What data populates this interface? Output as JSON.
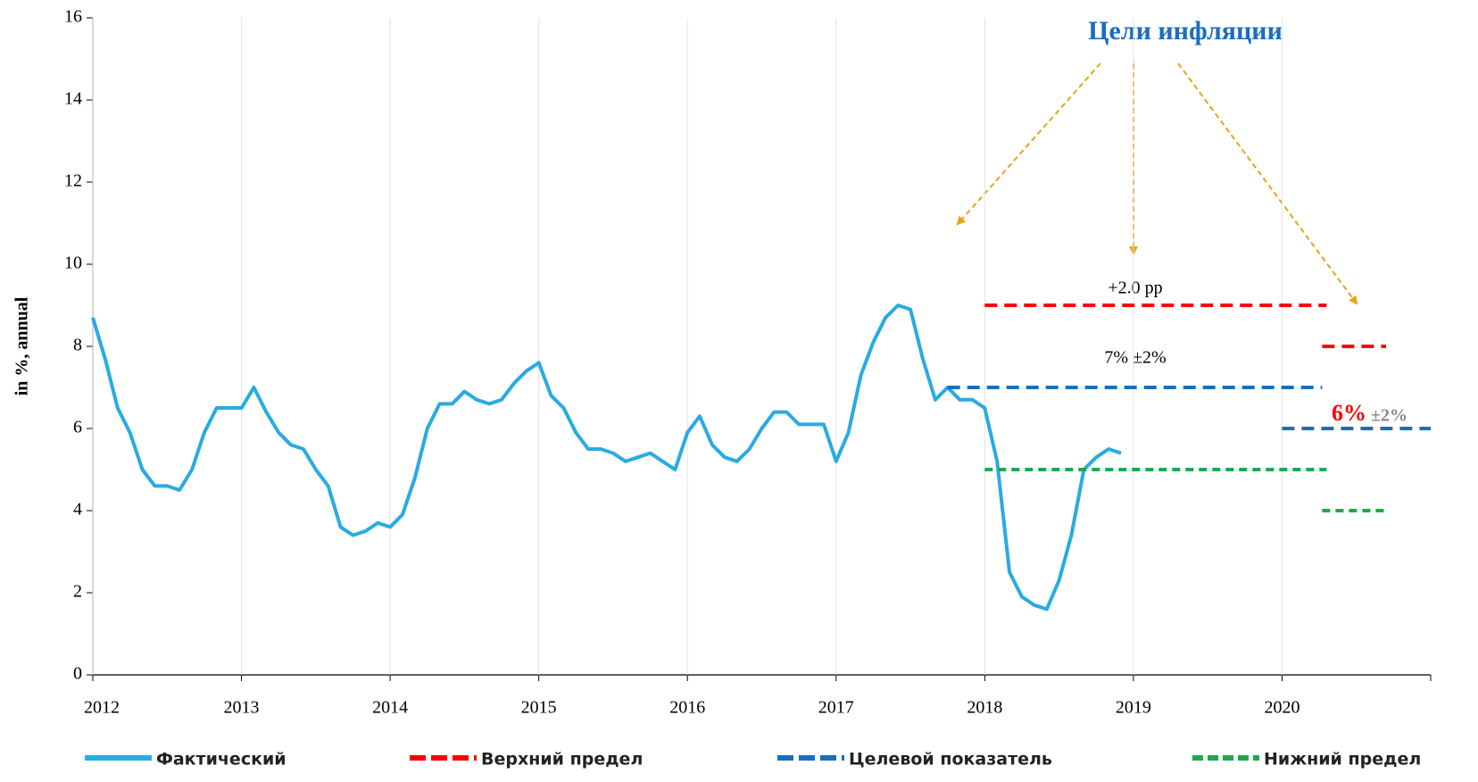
{
  "chart_data": {
    "type": "line",
    "title": "Цели инфляции",
    "ylabel": "in %, annual",
    "annotations": [
      "+2.0 pp",
      "7% ±2%",
      "6%",
      "±2%"
    ],
    "xlim": [
      2012,
      2021
    ],
    "xticks": [
      2012,
      2013,
      2014,
      2015,
      2016,
      2017,
      2018,
      2019,
      2020
    ],
    "ylim": [
      0,
      16
    ],
    "yticks": [
      0,
      2,
      4,
      6,
      8,
      10,
      12,
      14,
      16
    ],
    "xgrid": true,
    "series": [
      {
        "name": "Фактический",
        "color": "#29abe2",
        "style": "solid",
        "x": [
          2012,
          2012.083,
          2012.167,
          2012.25,
          2012.333,
          2012.417,
          2012.5,
          2012.583,
          2012.667,
          2012.75,
          2012.833,
          2012.917,
          2013,
          2013.083,
          2013.167,
          2013.25,
          2013.333,
          2013.417,
          2013.5,
          2013.583,
          2013.667,
          2013.75,
          2013.833,
          2013.917,
          2014,
          2014.083,
          2014.167,
          2014.25,
          2014.333,
          2014.417,
          2014.5,
          2014.583,
          2014.667,
          2014.75,
          2014.833,
          2014.917,
          2015,
          2015.083,
          2015.167,
          2015.25,
          2015.333,
          2015.417,
          2015.5,
          2015.583,
          2015.667,
          2015.75,
          2015.833,
          2015.917,
          2016,
          2016.083,
          2016.167,
          2016.25,
          2016.333,
          2016.417,
          2016.5,
          2016.583,
          2016.667,
          2016.75,
          2016.833,
          2016.917,
          2017,
          2017.083,
          2017.167,
          2017.25,
          2017.333,
          2017.417,
          2017.5,
          2017.583,
          2017.667,
          2017.75,
          2017.833,
          2017.917,
          2018,
          2018.083,
          2018.167,
          2018.25,
          2018.333,
          2018.417,
          2018.5,
          2018.583,
          2018.667,
          2018.75,
          2018.833,
          2018.917
        ],
        "values": [
          8.7,
          7.7,
          6.5,
          5.9,
          5.0,
          4.6,
          4.6,
          4.5,
          5.0,
          5.9,
          6.5,
          6.5,
          6.5,
          7.0,
          6.4,
          5.9,
          5.6,
          5.5,
          5.0,
          4.6,
          3.6,
          3.4,
          3.5,
          3.7,
          3.6,
          3.9,
          4.8,
          6.0,
          6.6,
          6.6,
          6.9,
          6.7,
          6.6,
          6.7,
          7.1,
          7.4,
          7.6,
          6.8,
          6.5,
          5.9,
          5.5,
          5.5,
          5.4,
          5.2,
          5.3,
          5.4,
          5.2,
          5.0,
          5.9,
          6.3,
          5.6,
          5.3,
          5.2,
          5.5,
          6.0,
          6.4,
          6.4,
          6.1,
          6.1,
          6.1,
          5.2,
          5.9,
          7.3,
          8.1,
          8.7,
          9.0,
          8.9,
          7.7,
          6.7,
          7.0,
          6.7,
          6.7,
          6.5,
          5.2,
          2.5,
          1.9,
          1.7,
          1.6,
          2.3,
          3.4,
          5.0,
          5.3,
          5.5,
          5.4
        ]
      },
      {
        "name": "Верхний предел",
        "color": "#ff0000",
        "style": "dashed",
        "x": [
          2018,
          2020.3,
          2020.3,
          2020.27,
          2020.7
        ],
        "values": [
          9,
          9,
          null,
          8,
          8
        ]
      },
      {
        "name": "Целевой показатель",
        "color": "#1a6ebd",
        "style": "dashed",
        "x": [
          2017.75,
          2020.27,
          2020.27,
          2020,
          2021
        ],
        "values": [
          7,
          7,
          null,
          6,
          6
        ]
      },
      {
        "name": "Нижний предел",
        "color": "#1fa84f",
        "style": "dotted",
        "x": [
          2018,
          2020.3,
          2020.3,
          2020.27,
          2020.7
        ],
        "values": [
          5,
          5,
          null,
          4,
          4
        ]
      }
    ]
  }
}
